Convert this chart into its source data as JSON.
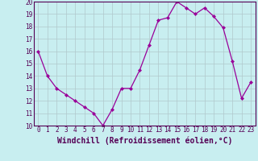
{
  "x": [
    0,
    1,
    2,
    3,
    4,
    5,
    6,
    7,
    8,
    9,
    10,
    11,
    12,
    13,
    14,
    15,
    16,
    17,
    18,
    19,
    20,
    21,
    22,
    23
  ],
  "y": [
    16,
    14,
    13,
    12.5,
    12,
    11.5,
    11,
    10,
    11.3,
    13,
    13,
    14.5,
    16.5,
    18.5,
    18.7,
    20,
    19.5,
    19,
    19.5,
    18.8,
    17.9,
    15.2,
    12.2,
    13.5
  ],
  "line_color": "#990099",
  "marker": "D",
  "marker_size": 2,
  "bg_color": "#c8eef0",
  "grid_color": "#b0c8cc",
  "xlabel": "Windchill (Refroidissement éolien,°C)",
  "ylim": [
    10,
    20
  ],
  "xlim": [
    -0.5,
    23.5
  ],
  "yticks": [
    10,
    11,
    12,
    13,
    14,
    15,
    16,
    17,
    18,
    19,
    20
  ],
  "xticks": [
    0,
    1,
    2,
    3,
    4,
    5,
    6,
    7,
    8,
    9,
    10,
    11,
    12,
    13,
    14,
    15,
    16,
    17,
    18,
    19,
    20,
    21,
    22,
    23
  ],
  "tick_label_fontsize": 5.5,
  "xlabel_fontsize": 7.0,
  "spine_color": "#550055"
}
